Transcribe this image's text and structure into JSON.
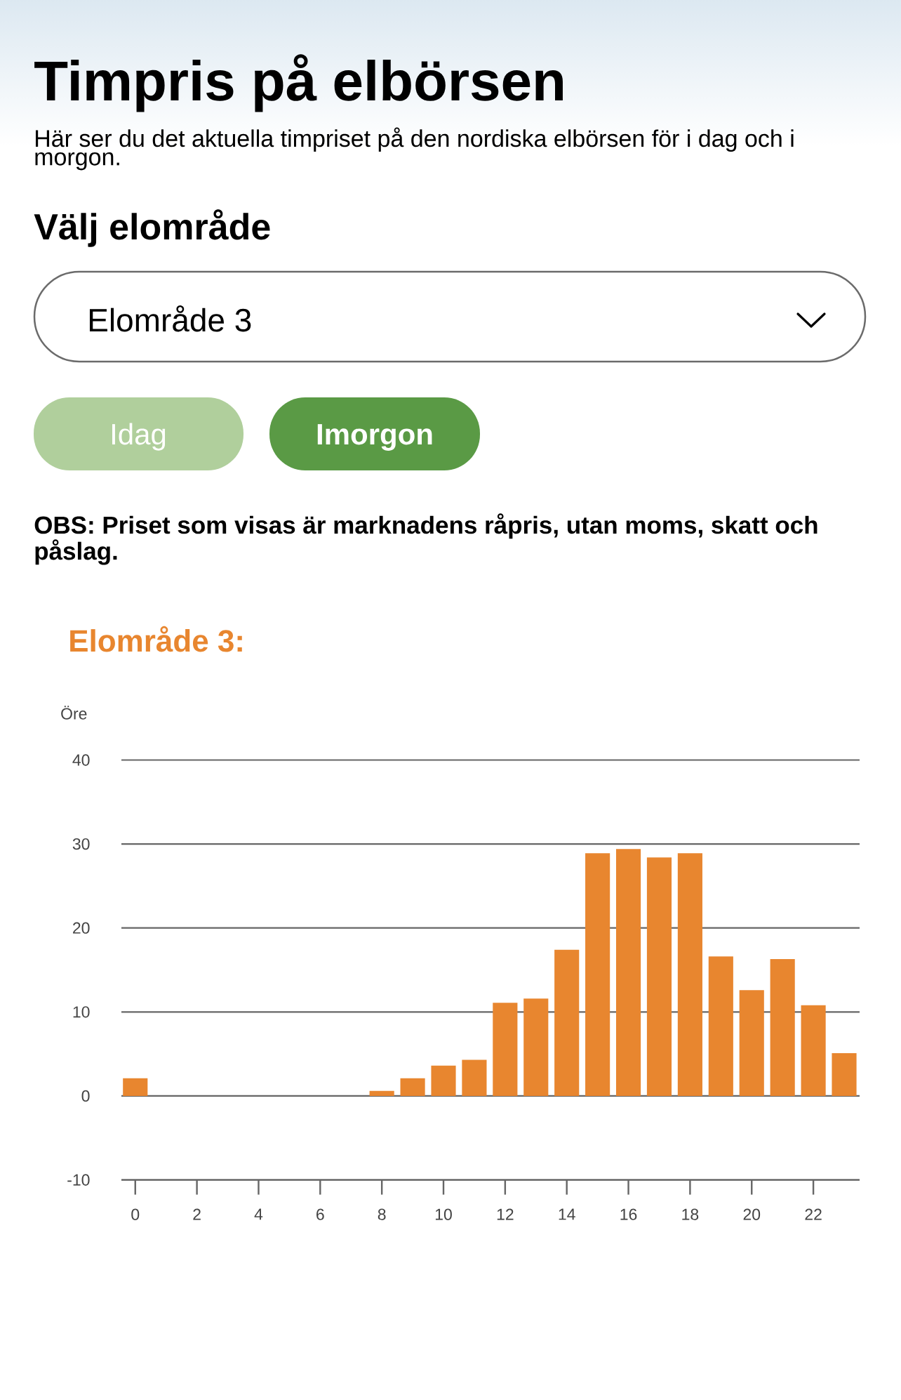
{
  "chart_data": {
    "type": "bar",
    "title": "Timpris på elbörsen",
    "subtitle": "Här ser du det aktuella timpriset på den nordiska elbörsen för i dag och i morgon.",
    "annotations": [
      "Välj elområde",
      "Elområde 3",
      "Idag",
      "Imorgon",
      "OBS: Priset som visas är marknadens råpris, utan moms, skatt och påslag.",
      "Elområde 3:"
    ],
    "ylabel": "Öre",
    "x": [
      0,
      1,
      2,
      3,
      4,
      5,
      6,
      7,
      8,
      9,
      10,
      11,
      12,
      13,
      14,
      15,
      16,
      17,
      18,
      19,
      20,
      21,
      22,
      23
    ],
    "values": [
      2.1,
      0,
      0,
      0,
      0,
      0,
      0,
      0,
      0.6,
      2.1,
      3.6,
      4.3,
      11.1,
      11.6,
      17.4,
      28.9,
      29.4,
      28.4,
      28.9,
      16.6,
      12.6,
      16.3,
      10.8,
      5.1
    ],
    "color": "#e8862f",
    "xlim": [
      -0.45,
      23.5
    ],
    "ylim": [
      -10,
      40
    ],
    "xticks": [
      0,
      2,
      4,
      6,
      8,
      10,
      12,
      14,
      16,
      18,
      20,
      22
    ],
    "yticks": [
      -10,
      0,
      10,
      20,
      30,
      40
    ],
    "grid": "y"
  }
}
